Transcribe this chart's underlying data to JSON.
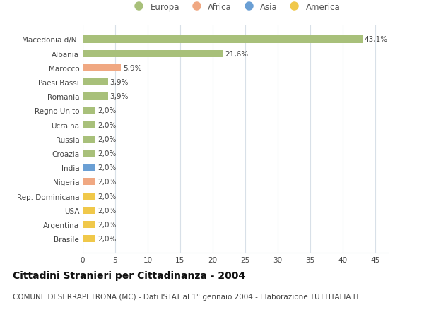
{
  "categories": [
    "Brasile",
    "Argentina",
    "USA",
    "Rep. Dominicana",
    "Nigeria",
    "India",
    "Croazia",
    "Russia",
    "Ucraina",
    "Regno Unito",
    "Romania",
    "Paesi Bassi",
    "Marocco",
    "Albania",
    "Macedonia d/N."
  ],
  "values": [
    2.0,
    2.0,
    2.0,
    2.0,
    2.0,
    2.0,
    2.0,
    2.0,
    2.0,
    2.0,
    3.9,
    3.9,
    5.9,
    21.6,
    43.1
  ],
  "labels": [
    "2,0%",
    "2,0%",
    "2,0%",
    "2,0%",
    "2,0%",
    "2,0%",
    "2,0%",
    "2,0%",
    "2,0%",
    "2,0%",
    "3,9%",
    "3,9%",
    "5,9%",
    "21,6%",
    "43,1%"
  ],
  "colors": [
    "#f0c84a",
    "#f0c84a",
    "#f0c84a",
    "#f0c84a",
    "#f0a882",
    "#6a9fd4",
    "#a8c07a",
    "#a8c07a",
    "#a8c07a",
    "#a8c07a",
    "#a8c07a",
    "#a8c07a",
    "#f0a882",
    "#a8c07a",
    "#a8c07a"
  ],
  "legend": [
    {
      "label": "Europa",
      "color": "#a8c07a"
    },
    {
      "label": "Africa",
      "color": "#f0a882"
    },
    {
      "label": "Asia",
      "color": "#6a9fd4"
    },
    {
      "label": "America",
      "color": "#f0c84a"
    }
  ],
  "xlim": [
    0,
    47
  ],
  "xticks": [
    0,
    5,
    10,
    15,
    20,
    25,
    30,
    35,
    40,
    45
  ],
  "title": "Cittadini Stranieri per Cittadinanza - 2004",
  "subtitle": "COMUNE DI SERRAPETRONA (MC) - Dati ISTAT al 1° gennaio 2004 - Elaborazione TUTTITALIA.IT",
  "bg_color": "#ffffff",
  "grid_color": "#d8e0e8",
  "bar_height": 0.5,
  "title_fontsize": 10,
  "subtitle_fontsize": 7.5,
  "label_fontsize": 7.5,
  "tick_fontsize": 7.5,
  "legend_fontsize": 8.5
}
